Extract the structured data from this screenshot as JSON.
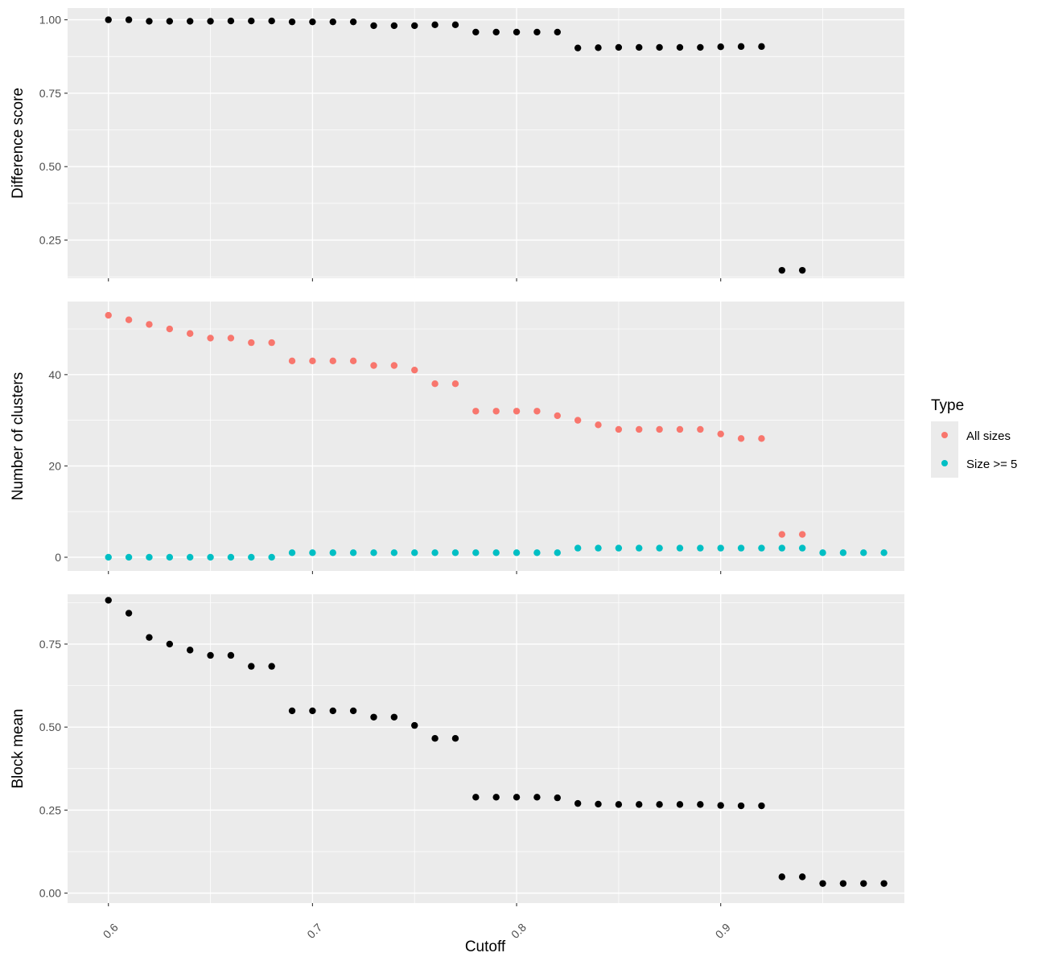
{
  "chart_data": {
    "type": "scatter",
    "x_title": "Cutoff",
    "x_range": [
      0.58,
      0.99
    ],
    "x_ticks": [
      0.6,
      0.7,
      0.8,
      0.9
    ],
    "x_tick_labels": [
      "0.6",
      "0.7",
      "0.8",
      "0.9"
    ],
    "grid": true,
    "legend": {
      "title": "Type",
      "position": "right",
      "entries": [
        {
          "label": "All sizes",
          "color": "#F8766D"
        },
        {
          "label": "Size >= 5",
          "color": "#00BFC4"
        }
      ]
    },
    "panels": [
      {
        "ylabel": "Difference score",
        "ylim": [
          0.12,
          1.04
        ],
        "y_ticks": [
          0.25,
          0.5,
          0.75,
          1.0
        ],
        "y_tick_labels": [
          "0.25",
          "0.50",
          "0.75",
          "1.00"
        ],
        "series": [
          {
            "color": "#000000",
            "x": [
              0.6,
              0.61,
              0.62,
              0.63,
              0.64,
              0.65,
              0.66,
              0.67,
              0.68,
              0.69,
              0.7,
              0.71,
              0.72,
              0.73,
              0.74,
              0.75,
              0.76,
              0.77,
              0.78,
              0.79,
              0.8,
              0.81,
              0.82,
              0.83,
              0.84,
              0.85,
              0.86,
              0.87,
              0.88,
              0.89,
              0.9,
              0.91,
              0.92,
              0.93,
              0.94
            ],
            "y": [
              1.0,
              1.0,
              0.995,
              0.995,
              0.995,
              0.995,
              0.996,
              0.996,
              0.996,
              0.993,
              0.993,
              0.993,
              0.993,
              0.98,
              0.98,
              0.98,
              0.983,
              0.983,
              0.958,
              0.958,
              0.958,
              0.958,
              0.958,
              0.904,
              0.905,
              0.906,
              0.906,
              0.906,
              0.906,
              0.906,
              0.908,
              0.909,
              0.909,
              0.147,
              0.147
            ]
          }
        ]
      },
      {
        "ylabel": "Number of clusters",
        "ylim": [
          -3,
          56
        ],
        "y_ticks": [
          0,
          20,
          40
        ],
        "y_tick_labels": [
          "0",
          "20",
          "40"
        ],
        "series": [
          {
            "name": "All sizes",
            "color": "#F8766D",
            "x": [
              0.6,
              0.61,
              0.62,
              0.63,
              0.64,
              0.65,
              0.66,
              0.67,
              0.68,
              0.69,
              0.7,
              0.71,
              0.72,
              0.73,
              0.74,
              0.75,
              0.76,
              0.77,
              0.78,
              0.79,
              0.8,
              0.81,
              0.82,
              0.83,
              0.84,
              0.85,
              0.86,
              0.87,
              0.88,
              0.89,
              0.9,
              0.91,
              0.92,
              0.93,
              0.94
            ],
            "y": [
              53,
              52,
              51,
              50,
              49,
              48,
              48,
              47,
              47,
              43,
              43,
              43,
              43,
              42,
              42,
              41,
              38,
              38,
              32,
              32,
              32,
              32,
              31,
              30,
              29,
              28,
              28,
              28,
              28,
              28,
              27,
              26,
              26,
              5,
              5
            ]
          },
          {
            "name": "Size >= 5",
            "color": "#00BFC4",
            "x": [
              0.6,
              0.61,
              0.62,
              0.63,
              0.64,
              0.65,
              0.66,
              0.67,
              0.68,
              0.69,
              0.7,
              0.71,
              0.72,
              0.73,
              0.74,
              0.75,
              0.76,
              0.77,
              0.78,
              0.79,
              0.8,
              0.81,
              0.82,
              0.83,
              0.84,
              0.85,
              0.86,
              0.87,
              0.88,
              0.89,
              0.9,
              0.91,
              0.92,
              0.93,
              0.94,
              0.95,
              0.96,
              0.97,
              0.98
            ],
            "y": [
              0,
              0,
              0,
              0,
              0,
              0,
              0,
              0,
              0,
              1,
              1,
              1,
              1,
              1,
              1,
              1,
              1,
              1,
              1,
              1,
              1,
              1,
              1,
              2,
              2,
              2,
              2,
              2,
              2,
              2,
              2,
              2,
              2,
              2,
              2,
              1,
              1,
              1,
              1
            ]
          }
        ]
      },
      {
        "ylabel": "Block mean",
        "ylim": [
          -0.03,
          0.9
        ],
        "y_ticks": [
          0.0,
          0.25,
          0.5,
          0.75
        ],
        "y_tick_labels": [
          "0.00",
          "0.25",
          "0.50",
          "0.75"
        ],
        "series": [
          {
            "color": "#000000",
            "x": [
              0.6,
              0.61,
              0.62,
              0.63,
              0.64,
              0.65,
              0.66,
              0.67,
              0.68,
              0.69,
              0.7,
              0.71,
              0.72,
              0.73,
              0.74,
              0.75,
              0.76,
              0.77,
              0.78,
              0.79,
              0.8,
              0.81,
              0.82,
              0.83,
              0.84,
              0.85,
              0.86,
              0.87,
              0.88,
              0.89,
              0.9,
              0.91,
              0.92,
              0.93,
              0.94,
              0.95,
              0.96,
              0.97,
              0.98
            ],
            "y": [
              0.882,
              0.843,
              0.77,
              0.75,
              0.732,
              0.716,
              0.716,
              0.683,
              0.683,
              0.549,
              0.549,
              0.549,
              0.549,
              0.53,
              0.53,
              0.505,
              0.466,
              0.466,
              0.289,
              0.289,
              0.289,
              0.289,
              0.287,
              0.27,
              0.268,
              0.267,
              0.267,
              0.267,
              0.267,
              0.267,
              0.264,
              0.263,
              0.263,
              0.049,
              0.049,
              0.029,
              0.029,
              0.029,
              0.029
            ]
          }
        ]
      }
    ]
  }
}
